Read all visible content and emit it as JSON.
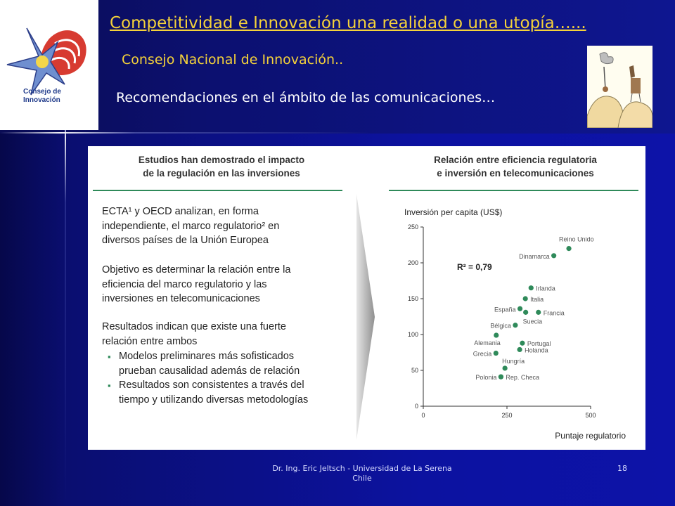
{
  "slide": {
    "title": "Competitividad e Innovación una realidad o una utopía…...",
    "subtitle": "Consejo Nacional de Innovación..",
    "heading": "Recomendaciones en el ámbito de las comunicaciones…",
    "logo_text_1": "Consejo de",
    "logo_text_2": "Innovación",
    "footer_line1": "Dr. Ing. Eric Jeltsch - Universidad de La Serena",
    "footer_line2": "Chile",
    "page_number": "18"
  },
  "left_panel": {
    "header_line1": "Estudios han demostrado el impacto",
    "header_line2": "de la regulación en las inversiones",
    "paragraph1": [
      "ECTA¹ y OECD analizan, en forma",
      "independiente, el marco regulatorio² en",
      "diversos países de la Unión Europea"
    ],
    "paragraph2": [
      "Objetivo es determinar la relación entre la",
      "eficiencia del marco regulatorio y las",
      "inversiones en telecomunicaciones"
    ],
    "paragraph3": [
      "Resultados indican que existe una fuerte",
      "relación entre ambos"
    ],
    "bullets": [
      [
        "Modelos preliminares más sofisticados",
        "prueban causalidad además de relación"
      ],
      [
        "Resultados son consistentes a través del",
        "tiempo y utilizando diversas metodologías"
      ]
    ]
  },
  "right_panel": {
    "header_line1": "Relación entre eficiencia regulatoria",
    "header_line2": "e inversión en telecomunicaciones"
  },
  "chart_data": {
    "type": "scatter",
    "ylabel": "Inversión per capita (US$)",
    "xlabel": "Puntaje regulatorio",
    "annotation": "R² = 0,79",
    "xlim": [
      0,
      500
    ],
    "ylim": [
      0,
      250
    ],
    "xticks": [
      0,
      250,
      500
    ],
    "yticks": [
      0,
      50,
      100,
      150,
      200,
      250
    ],
    "grid": false,
    "marker_color": "#2f8a5a",
    "points": [
      {
        "label": "Reino Unido",
        "x": 435,
        "y": 220,
        "anchor": "top"
      },
      {
        "label": "Dinamarca",
        "x": 390,
        "y": 210,
        "anchor": "left"
      },
      {
        "label": "Irlanda",
        "x": 322,
        "y": 165,
        "anchor": "right"
      },
      {
        "label": "Italia",
        "x": 305,
        "y": 150,
        "anchor": "right"
      },
      {
        "label": "España",
        "x": 289,
        "y": 136,
        "anchor": "left"
      },
      {
        "label": "Francia",
        "x": 344,
        "y": 131,
        "anchor": "right"
      },
      {
        "label": "Suecia",
        "x": 306,
        "y": 131,
        "anchor": "below"
      },
      {
        "label": "Bélgica",
        "x": 275,
        "y": 113,
        "anchor": "left"
      },
      {
        "label": "Alemania",
        "x": 218,
        "y": 99,
        "anchor": "below-left"
      },
      {
        "label": "Portugal",
        "x": 296,
        "y": 88,
        "anchor": "right"
      },
      {
        "label": "Holanda",
        "x": 288,
        "y": 79,
        "anchor": "right"
      },
      {
        "label": "Grecia",
        "x": 217,
        "y": 74,
        "anchor": "left"
      },
      {
        "label": "Hungría",
        "x": 244,
        "y": 53,
        "anchor": "above-right"
      },
      {
        "label": "Rep. Checa",
        "x": 232,
        "y": 41,
        "anchor": "right"
      },
      {
        "label": "Polonia",
        "x": 232,
        "y": 41,
        "anchor": "left"
      }
    ]
  }
}
